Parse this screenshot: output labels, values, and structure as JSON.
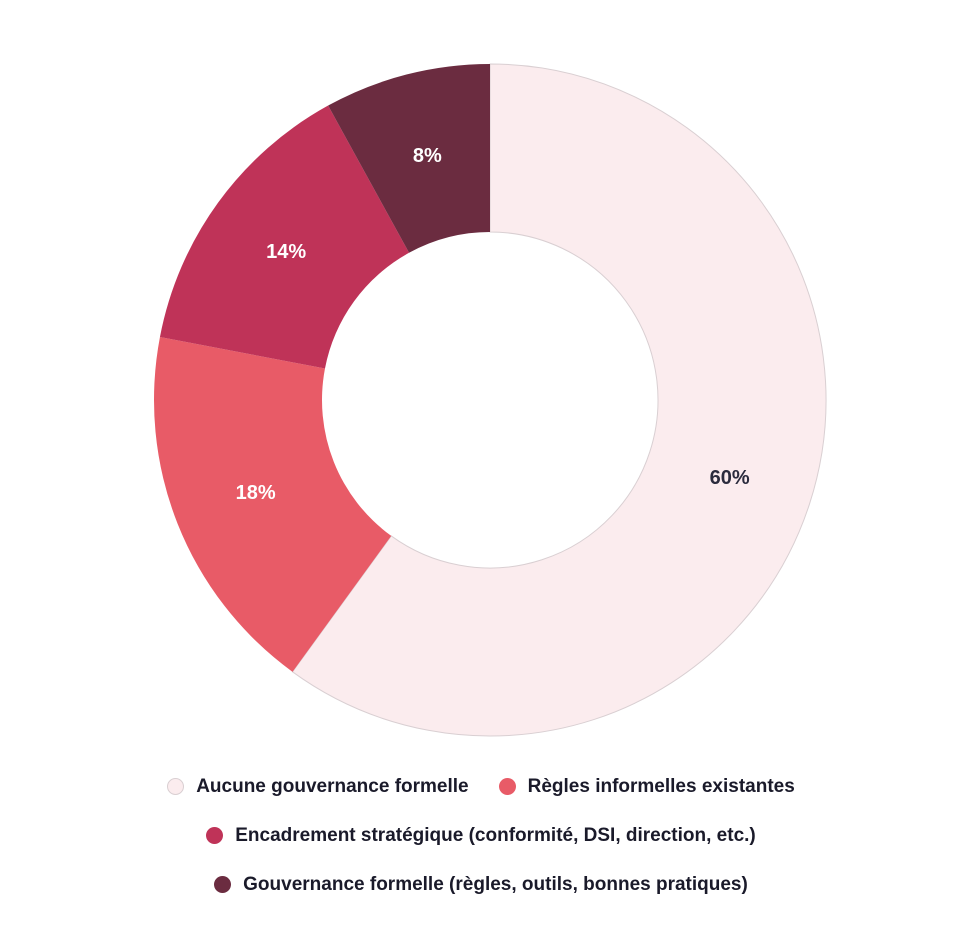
{
  "chart_data": {
    "type": "pie",
    "donut": true,
    "slices": [
      {
        "name": "Aucune gouvernance formelle",
        "value": 60,
        "label": "60%",
        "color": "#fbecee",
        "label_color": "#2b2b3d"
      },
      {
        "name": "Règles informelles existantes",
        "value": 18,
        "label": "18%",
        "color": "#e85b67",
        "label_color": "#ffffff"
      },
      {
        "name": "Encadrement stratégique (conformité, DSI, direction, etc.)",
        "value": 14,
        "label": "14%",
        "color": "#bf3358",
        "label_color": "#ffffff"
      },
      {
        "name": "Gouvernance formelle (règles, outils, bonnes pratiques)",
        "value": 8,
        "label": "8%",
        "color": "#6b2c40",
        "label_color": "#ffffff"
      }
    ],
    "legend_position": "bottom",
    "start_angle": "top",
    "direction": "clockwise"
  },
  "legend": {
    "rows": [
      [
        0,
        1
      ],
      [
        2
      ],
      [
        3
      ]
    ]
  }
}
